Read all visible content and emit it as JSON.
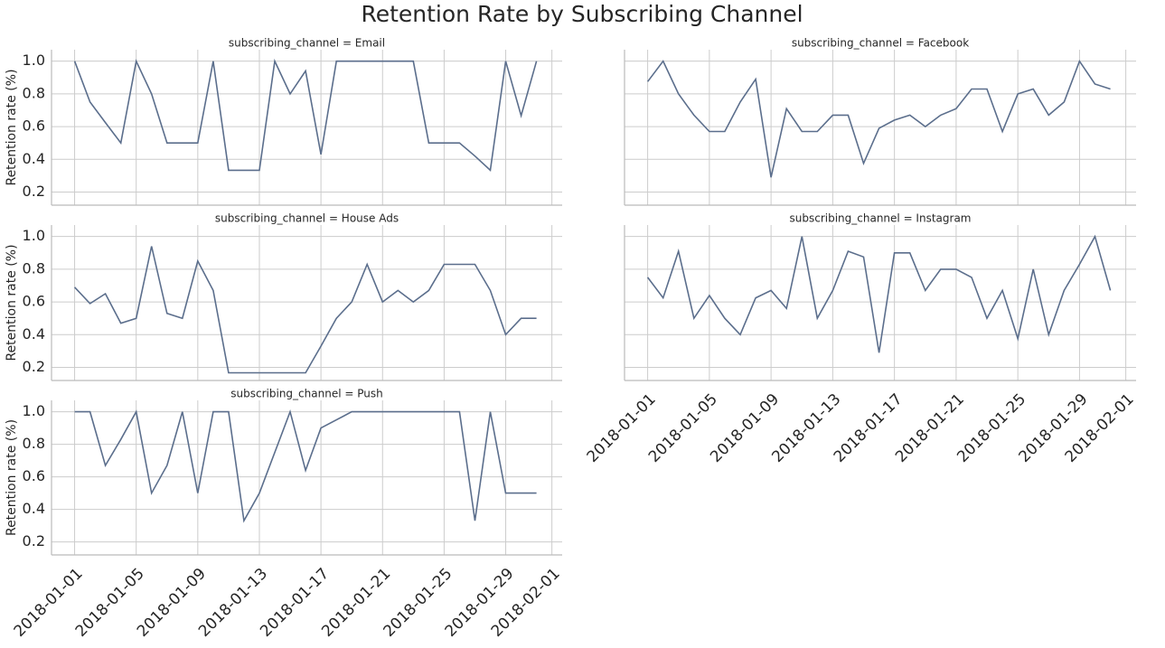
{
  "title": "Retention Rate by Subscribing Channel",
  "chart_data": [
    {
      "type": "line",
      "title": "subscribing_channel = Email",
      "ylabel": "Retention rate (%)",
      "color": "#5b6e8c",
      "grid": true,
      "x": [
        "2018-01-01",
        "2018-01-02",
        "2018-01-03",
        "2018-01-04",
        "2018-01-05",
        "2018-01-06",
        "2018-01-07",
        "2018-01-08",
        "2018-01-09",
        "2018-01-10",
        "2018-01-11",
        "2018-01-12",
        "2018-01-13",
        "2018-01-14",
        "2018-01-15",
        "2018-01-16",
        "2018-01-17",
        "2018-01-18",
        "2018-01-19",
        "2018-01-20",
        "2018-01-21",
        "2018-01-22",
        "2018-01-23",
        "2018-01-24",
        "2018-01-25",
        "2018-01-26",
        "2018-01-27",
        "2018-01-28",
        "2018-01-29",
        "2018-01-30",
        "2018-01-31"
      ],
      "values": [
        1.0,
        0.75,
        0.625,
        0.5,
        1.0,
        0.8,
        0.5,
        0.5,
        0.5,
        1.0,
        0.333,
        0.333,
        0.333,
        1.0,
        0.8,
        0.94,
        0.43,
        1.0,
        1.0,
        1.0,
        1.0,
        1.0,
        1.0,
        0.5,
        0.5,
        0.5,
        0.42,
        0.333,
        1.0,
        0.667,
        1.0
      ],
      "xlim": [
        "2017-12-30T12:00:00Z",
        "2018-02-01T16:00:00Z"
      ],
      "xticks": [
        "2018-01-01",
        "2018-01-05",
        "2018-01-09",
        "2018-01-13",
        "2018-01-17",
        "2018-01-21",
        "2018-01-25",
        "2018-01-29",
        "2018-02-01"
      ],
      "ylim": [
        0.12,
        1.07
      ],
      "yticks": [
        0.2,
        0.4,
        0.6,
        0.8,
        {
          "value": 1,
          "label": "1.0"
        }
      ]
    },
    {
      "type": "line",
      "title": "subscribing_channel = Facebook",
      "color": "#5b6e8c",
      "grid": true,
      "x": [
        "2018-01-01",
        "2018-01-02",
        "2018-01-03",
        "2018-01-04",
        "2018-01-05",
        "2018-01-06",
        "2018-01-07",
        "2018-01-08",
        "2018-01-09",
        "2018-01-10",
        "2018-01-11",
        "2018-01-12",
        "2018-01-13",
        "2018-01-14",
        "2018-01-15",
        "2018-01-16",
        "2018-01-17",
        "2018-01-18",
        "2018-01-19",
        "2018-01-20",
        "2018-01-21",
        "2018-01-22",
        "2018-01-23",
        "2018-01-24",
        "2018-01-25",
        "2018-01-26",
        "2018-01-27",
        "2018-01-28",
        "2018-01-29",
        "2018-01-30",
        "2018-01-31"
      ],
      "values": [
        0.875,
        1.0,
        0.8,
        0.67,
        0.57,
        0.57,
        0.75,
        0.89,
        0.29,
        0.71,
        0.57,
        0.57,
        0.67,
        0.67,
        0.375,
        0.59,
        0.64,
        0.67,
        0.6,
        0.67,
        0.71,
        0.83,
        0.83,
        0.57,
        0.8,
        0.83,
        0.67,
        0.75,
        1.0,
        0.86,
        0.83
      ],
      "xlim": [
        "2017-12-30T12:00:00Z",
        "2018-02-01T16:00:00Z"
      ],
      "xticks": [
        "2018-01-01",
        "2018-01-05",
        "2018-01-09",
        "2018-01-13",
        "2018-01-17",
        "2018-01-21",
        "2018-01-25",
        "2018-01-29",
        "2018-02-01"
      ],
      "ylim": [
        0.12,
        1.07
      ],
      "yticks": [
        0.2,
        0.4,
        0.6,
        0.8,
        {
          "value": 1,
          "label": "1.0"
        }
      ]
    },
    {
      "type": "line",
      "title": "subscribing_channel = House Ads",
      "ylabel": "Retention rate (%)",
      "color": "#5b6e8c",
      "grid": true,
      "x": [
        "2018-01-01",
        "2018-01-02",
        "2018-01-03",
        "2018-01-04",
        "2018-01-05",
        "2018-01-06",
        "2018-01-07",
        "2018-01-08",
        "2018-01-09",
        "2018-01-10",
        "2018-01-11",
        "2018-01-12",
        "2018-01-13",
        "2018-01-14",
        "2018-01-15",
        "2018-01-16",
        "2018-01-17",
        "2018-01-18",
        "2018-01-19",
        "2018-01-20",
        "2018-01-21",
        "2018-01-22",
        "2018-01-23",
        "2018-01-24",
        "2018-01-25",
        "2018-01-26",
        "2018-01-27",
        "2018-01-28",
        "2018-01-29",
        "2018-01-30",
        "2018-01-31"
      ],
      "values": [
        0.69,
        0.59,
        0.65,
        0.47,
        0.5,
        0.94,
        0.53,
        0.5,
        0.85,
        0.67,
        0.167,
        0.167,
        0.167,
        0.167,
        0.167,
        0.167,
        0.33,
        0.5,
        0.6,
        0.83,
        0.6,
        0.67,
        0.6,
        0.67,
        0.83,
        0.83,
        0.83,
        0.67,
        0.4,
        0.5,
        0.5
      ],
      "xlim": [
        "2017-12-30T12:00:00Z",
        "2018-02-01T16:00:00Z"
      ],
      "xticks": [
        "2018-01-01",
        "2018-01-05",
        "2018-01-09",
        "2018-01-13",
        "2018-01-17",
        "2018-01-21",
        "2018-01-25",
        "2018-01-29",
        "2018-02-01"
      ],
      "ylim": [
        0.12,
        1.07
      ],
      "yticks": [
        0.2,
        0.4,
        0.6,
        0.8,
        {
          "value": 1,
          "label": "1.0"
        }
      ]
    },
    {
      "type": "line",
      "title": "subscribing_channel = Instagram",
      "color": "#5b6e8c",
      "grid": true,
      "x": [
        "2018-01-01",
        "2018-01-02",
        "2018-01-03",
        "2018-01-04",
        "2018-01-05",
        "2018-01-06",
        "2018-01-07",
        "2018-01-08",
        "2018-01-09",
        "2018-01-10",
        "2018-01-11",
        "2018-01-12",
        "2018-01-13",
        "2018-01-14",
        "2018-01-15",
        "2018-01-16",
        "2018-01-17",
        "2018-01-18",
        "2018-01-19",
        "2018-01-20",
        "2018-01-21",
        "2018-01-22",
        "2018-01-23",
        "2018-01-24",
        "2018-01-25",
        "2018-01-26",
        "2018-01-27",
        "2018-01-28",
        "2018-01-29",
        "2018-01-30",
        "2018-01-31"
      ],
      "values": [
        0.75,
        0.625,
        0.91,
        0.5,
        0.64,
        0.5,
        0.4,
        0.625,
        0.67,
        0.56,
        1.0,
        0.5,
        0.67,
        0.91,
        0.875,
        0.29,
        0.9,
        0.9,
        0.67,
        0.8,
        0.8,
        0.75,
        0.5,
        0.67,
        0.375,
        0.8,
        0.4,
        0.67,
        0.83,
        1.0,
        0.67
      ],
      "xlim": [
        "2017-12-30T12:00:00Z",
        "2018-02-01T16:00:00Z"
      ],
      "xticks": [
        "2018-01-01",
        "2018-01-05",
        "2018-01-09",
        "2018-01-13",
        "2018-01-17",
        "2018-01-21",
        "2018-01-25",
        "2018-01-29",
        "2018-02-01"
      ],
      "ylim": [
        0.12,
        1.07
      ],
      "yticks": [
        0.2,
        0.4,
        0.6,
        0.8,
        {
          "value": 1,
          "label": "1.0"
        }
      ]
    },
    {
      "type": "line",
      "title": "subscribing_channel = Push",
      "ylabel": "Retention rate (%)",
      "color": "#5b6e8c",
      "grid": true,
      "x": [
        "2018-01-01",
        "2018-01-02",
        "2018-01-03",
        "2018-01-04",
        "2018-01-05",
        "2018-01-06",
        "2018-01-07",
        "2018-01-08",
        "2018-01-09",
        "2018-01-10",
        "2018-01-11",
        "2018-01-12",
        "2018-01-13",
        "2018-01-14",
        "2018-01-15",
        "2018-01-16",
        "2018-01-17",
        "2018-01-18",
        "2018-01-19",
        "2018-01-20",
        "2018-01-21",
        "2018-01-22",
        "2018-01-23",
        "2018-01-24",
        "2018-01-25",
        "2018-01-26",
        "2018-01-27",
        "2018-01-28",
        "2018-01-29",
        "2018-01-30",
        "2018-01-31"
      ],
      "values": [
        1.0,
        1.0,
        0.67,
        0.83,
        1.0,
        0.5,
        0.67,
        1.0,
        0.5,
        1.0,
        1.0,
        0.33,
        0.5,
        0.75,
        1.0,
        0.64,
        0.9,
        0.95,
        1.0,
        1.0,
        1.0,
        1.0,
        1.0,
        1.0,
        1.0,
        1.0,
        0.33,
        1.0,
        0.5,
        0.5,
        0.5
      ],
      "xlim": [
        "2017-12-30T12:00:00Z",
        "2018-02-01T16:00:00Z"
      ],
      "xticks": [
        "2018-01-01",
        "2018-01-05",
        "2018-01-09",
        "2018-01-13",
        "2018-01-17",
        "2018-01-21",
        "2018-01-25",
        "2018-01-29",
        "2018-02-01"
      ],
      "ylim": [
        0.12,
        1.07
      ],
      "yticks": [
        0.2,
        0.4,
        0.6,
        0.8,
        {
          "value": 1,
          "label": "1.0"
        }
      ]
    }
  ]
}
